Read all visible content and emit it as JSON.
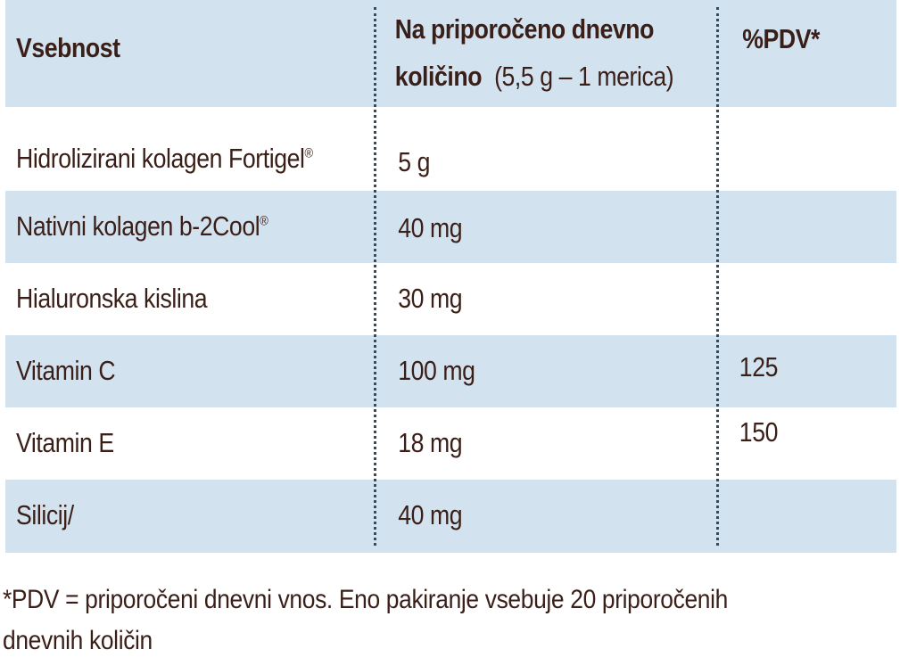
{
  "header": {
    "col1": "Vsebnost",
    "col2_line1": "Na priporočeno dnevno",
    "col2_line2_bold": "količino",
    "col2_line2_normal": "(5,5 g – 1 merica)",
    "col3": "%PDV*"
  },
  "rows": [
    {
      "name": "Hidrolizirani kolagen Fortigel",
      "sup": "®",
      "amount": "5 g",
      "pdv": ""
    },
    {
      "name": "Nativni kolagen b-2Cool",
      "sup": "®",
      "amount": "40 mg",
      "pdv": ""
    },
    {
      "name": "Hialuronska kislina",
      "sup": "",
      "amount": "30 mg",
      "pdv": ""
    },
    {
      "name": "Vitamin C",
      "sup": "",
      "amount": "100 mg",
      "pdv": "125"
    },
    {
      "name": "Vitamin E",
      "sup": "",
      "amount": "18 mg",
      "pdv": "150"
    },
    {
      "name": "Silicij/",
      "sup": "",
      "amount": "40 mg",
      "pdv": ""
    }
  ],
  "colors": {
    "shade": "#d3e2ef",
    "text": "#3a1f18",
    "divider": "#2f4c63"
  },
  "footnote": "*PDV = priporočeni dnevni vnos. Eno pakiranje vsebuje 20 priporočenih dnevnih količin"
}
